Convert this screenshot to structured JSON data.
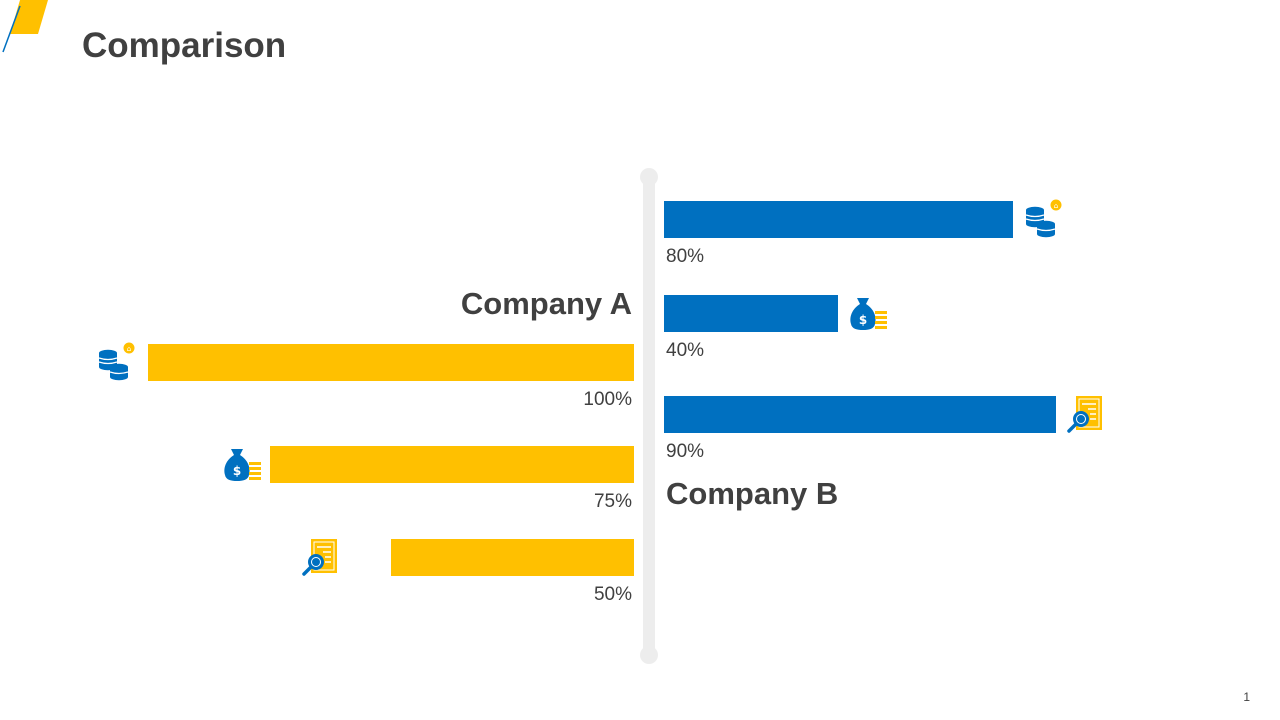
{
  "slide": {
    "title": "Comparison",
    "page_number": "1"
  },
  "colors": {
    "company_a": "#FFC000",
    "company_b": "#0070C0",
    "axis": "#EDEDED",
    "text": "#404040"
  },
  "chart_data": {
    "type": "bar",
    "orientation": "horizontal-diverging",
    "series": [
      {
        "name": "Company A",
        "side": "left",
        "color": "#FFC000",
        "values": [
          100,
          75,
          50
        ],
        "labels": [
          "100%",
          "75%",
          "50%"
        ],
        "icons": [
          "coins-icon",
          "money-bag-icon",
          "document-search-icon"
        ]
      },
      {
        "name": "Company B",
        "side": "right",
        "color": "#0070C0",
        "values": [
          80,
          40,
          90
        ],
        "labels": [
          "80%",
          "40%",
          "90%"
        ],
        "icons": [
          "coins-icon",
          "money-bag-icon",
          "document-search-icon"
        ]
      }
    ],
    "xlim": [
      0,
      100
    ]
  }
}
